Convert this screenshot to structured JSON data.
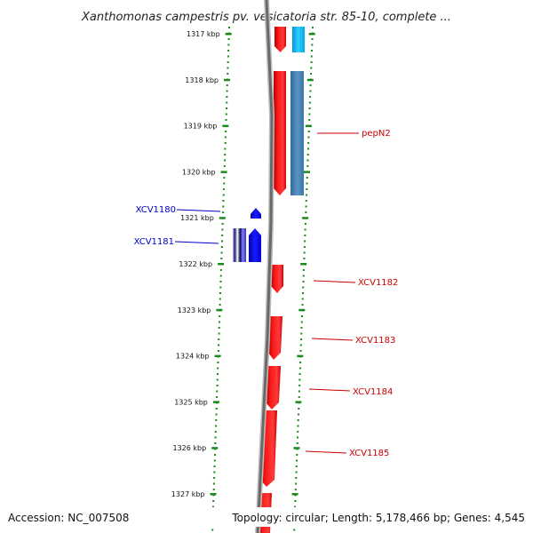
{
  "title": "Xanthomonas campestris pv. vesicatoria str. 85-10, complete ...",
  "footer": {
    "accession": "Accession: NC_007508",
    "summary": "Topology: circular; Length: 5,178,466 bp; Genes: 4,545"
  },
  "colors": {
    "forward_gene": "#ff0000",
    "reverse_gene": "#0000ff",
    "cds_cyan": "#00bbff",
    "cds_steel": "#4a82b4",
    "backbone": "#7f7f7f",
    "tick": "#1a8a1a",
    "forward_label": "#cc0000",
    "reverse_label": "#0000cc"
  },
  "chart_data": {
    "type": "genome-map",
    "ticks": [
      "1317 kbp",
      "1318 kbp",
      "1319 kbp",
      "1320 kbp",
      "1321 kbp",
      "1322 kbp",
      "1323 kbp",
      "1324 kbp",
      "1325 kbp",
      "1326 kbp",
      "1327 kbp"
    ],
    "labeled_genes": [
      {
        "name": "pepN2",
        "strand": "+"
      },
      {
        "name": "XCV1180",
        "strand": "-"
      },
      {
        "name": "XCV1181",
        "strand": "-"
      },
      {
        "name": "XCV1182",
        "strand": "+"
      },
      {
        "name": "XCV1183",
        "strand": "+"
      },
      {
        "name": "XCV1184",
        "strand": "+"
      },
      {
        "name": "XCV1185",
        "strand": "+"
      }
    ]
  }
}
